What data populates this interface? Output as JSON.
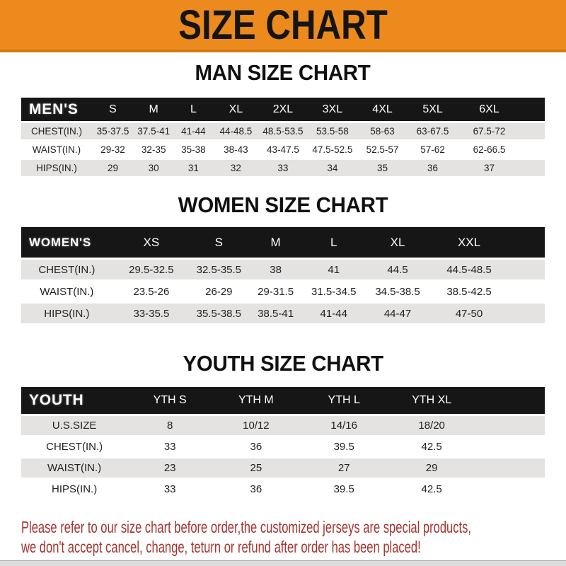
{
  "banner": {
    "title": "SIZE CHART",
    "bg_color": "#EC8A1E",
    "text_color": "#151515"
  },
  "sections": [
    {
      "heading": "MAN SIZE CHART",
      "header_label": "MEN'S",
      "columns": [
        "S",
        "M",
        "L",
        "XL",
        "2XL",
        "3XL",
        "4XL",
        "5XL",
        "6XL"
      ],
      "rows": [
        {
          "label": "CHEST(IN.)",
          "values": [
            "35-37.5",
            "37.5-41",
            "41-44",
            "44-48.5",
            "48.5-53.5",
            "53.5-58",
            "58-63",
            "63-67.5",
            "67.5-72"
          ]
        },
        {
          "label": "WAIST(IN.)",
          "values": [
            "29-32",
            "32-35",
            "35-38",
            "38-43",
            "43-47.5",
            "47.5-52.5",
            "52.5-57",
            "57-62",
            "62-66.5"
          ]
        },
        {
          "label": "HIPS(IN.)",
          "values": [
            "29",
            "30",
            "31",
            "32",
            "33",
            "34",
            "35",
            "36",
            "37"
          ]
        }
      ]
    },
    {
      "heading": "WOMEN SIZE CHART",
      "header_label": "WOMEN'S",
      "columns": [
        "XS",
        "S",
        "M",
        "L",
        "XL",
        "XXL"
      ],
      "rows": [
        {
          "label": "CHEST(IN.)",
          "values": [
            "29.5-32.5",
            "32.5-35.5",
            "38",
            "41",
            "44.5",
            "44.5-48.5"
          ]
        },
        {
          "label": "WAIST(IN.)",
          "values": [
            "23.5-26",
            "26-29",
            "29-31.5",
            "31.5-34.5",
            "34.5-38.5",
            "38.5-42.5"
          ]
        },
        {
          "label": "HIPS(IN.)",
          "values": [
            "33-35.5",
            "35.5-38.5",
            "38.5-41",
            "41-44",
            "44-47",
            "47-50"
          ]
        }
      ]
    },
    {
      "heading": "YOUTH SIZE CHART",
      "header_label": "YOUTH",
      "columns": [
        "YTH S",
        "YTH M",
        "YTH L",
        "YTH XL"
      ],
      "rows": [
        {
          "label": "U.S.SIZE",
          "values": [
            "8",
            "10/12",
            "14/16",
            "18/20"
          ]
        },
        {
          "label": "CHEST(IN.)",
          "values": [
            "33",
            "36",
            "39.5",
            "42.5"
          ]
        },
        {
          "label": "WAIST(IN.)",
          "values": [
            "23",
            "25",
            "27",
            "29"
          ]
        },
        {
          "label": "HIPS(IN.)",
          "values": [
            "33",
            "36",
            "39.5",
            "42.5"
          ]
        }
      ]
    }
  ],
  "footer": {
    "line1": "Please refer to our size chart before order,the customized jerseys are special products,",
    "line2": "we don't accept cancel, change, teturn or refund after order has been placed!",
    "text_color": "#A4342F"
  },
  "colors": {
    "banner_orange": "#EC8A1E",
    "banner_border": "#CF7A15",
    "header_bar_black": "#161616",
    "row_gray": "#E4E3E1",
    "row_white": "#FFFFFF",
    "footer_red": "#A4342F"
  }
}
